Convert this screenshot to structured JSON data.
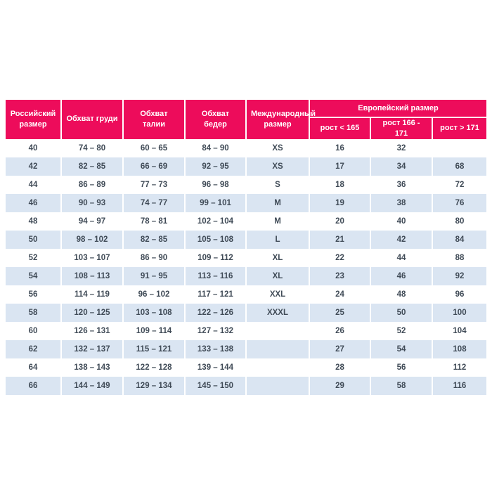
{
  "colors": {
    "header_bg": "#ED0C5B",
    "header_text": "#FFFFFF",
    "row_alt_bg": "#DAE5F2",
    "cell_text": "#404B57"
  },
  "chart_data": {
    "type": "table",
    "header": {
      "russian_size": "Российский размер",
      "chest": "Обхват груди",
      "waist": "Обхват талии",
      "hips": "Обхват бедер",
      "international_size": "Международный размер",
      "european_size_group": "Европейский размер",
      "height_under_165": "рост < 165",
      "height_166_171": "рост 166 - 171",
      "height_over_171": "рост > 171"
    },
    "rows": [
      [
        "40",
        "74 – 80",
        "60 – 65",
        "84 – 90",
        "XS",
        "16",
        "32",
        ""
      ],
      [
        "42",
        "82 – 85",
        "66 – 69",
        "92 – 95",
        "XS",
        "17",
        "34",
        "68"
      ],
      [
        "44",
        "86 – 89",
        "77 – 73",
        "96 – 98",
        "S",
        "18",
        "36",
        "72"
      ],
      [
        "46",
        "90 – 93",
        "74 – 77",
        "99 – 101",
        "M",
        "19",
        "38",
        "76"
      ],
      [
        "48",
        "94 – 97",
        "78 – 81",
        "102 – 104",
        "M",
        "20",
        "40",
        "80"
      ],
      [
        "50",
        "98 – 102",
        "82 – 85",
        "105 – 108",
        "L",
        "21",
        "42",
        "84"
      ],
      [
        "52",
        "103 – 107",
        "86 – 90",
        "109 – 112",
        "XL",
        "22",
        "44",
        "88"
      ],
      [
        "54",
        "108 – 113",
        "91 – 95",
        "113 – 116",
        "XL",
        "23",
        "46",
        "92"
      ],
      [
        "56",
        "114 – 119",
        "96 – 102",
        "117 – 121",
        "XXL",
        "24",
        "48",
        "96"
      ],
      [
        "58",
        "120 – 125",
        "103 – 108",
        "122 – 126",
        "XXXL",
        "25",
        "50",
        "100"
      ],
      [
        "60",
        "126 – 131",
        "109 – 114",
        "127 – 132",
        "",
        "26",
        "52",
        "104"
      ],
      [
        "62",
        "132 – 137",
        "115 – 121",
        "133 – 138",
        "",
        "27",
        "54",
        "108"
      ],
      [
        "64",
        "138 – 143",
        "122 – 128",
        "139 – 144",
        "",
        "28",
        "56",
        "112"
      ],
      [
        "66",
        "144 – 149",
        "129 – 134",
        "145 – 150",
        "",
        "29",
        "58",
        "116"
      ]
    ]
  }
}
